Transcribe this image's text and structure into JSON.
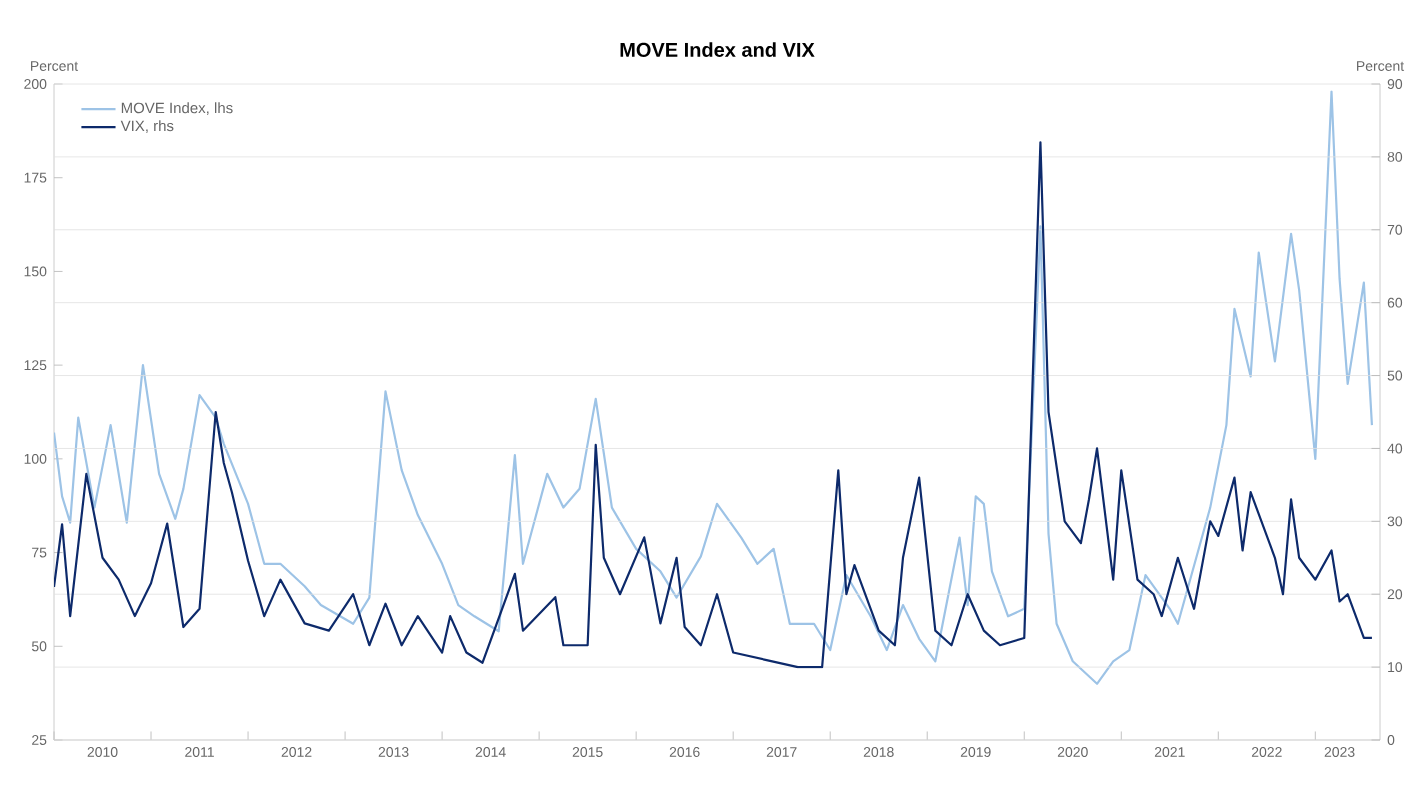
{
  "chart_data": {
    "type": "line",
    "title": "MOVE Index and VIX",
    "ylabel": "Percent",
    "y2label": "Percent",
    "xlim": [
      "2010-01-01",
      "2023-09-01"
    ],
    "ylim": [
      25,
      200
    ],
    "yticks": [
      25,
      50,
      75,
      100,
      125,
      150,
      175,
      200
    ],
    "y2lim": [
      0,
      90
    ],
    "y2ticks": [
      0,
      10,
      20,
      30,
      40,
      50,
      60,
      70,
      80,
      90
    ],
    "xticks": [
      {
        "value": "2010-01-01",
        "label": null
      },
      {
        "value": "2011-01-01",
        "label": null
      },
      {
        "value": "2012-01-01",
        "label": null
      },
      {
        "value": "2013-01-01",
        "label": null
      },
      {
        "value": "2014-01-01",
        "label": null
      },
      {
        "value": "2015-01-01",
        "label": null
      },
      {
        "value": "2016-01-01",
        "label": null
      },
      {
        "value": "2017-01-01",
        "label": null
      },
      {
        "value": "2018-01-01",
        "label": null
      },
      {
        "value": "2019-01-01",
        "label": null
      },
      {
        "value": "2020-01-01",
        "label": null
      },
      {
        "value": "2021-01-01",
        "label": null
      },
      {
        "value": "2022-01-01",
        "label": null
      },
      {
        "value": "2023-01-01",
        "label": null
      },
      {
        "value": "2010-07-01",
        "label": "2010"
      },
      {
        "value": "2011-07-01",
        "label": "2011"
      },
      {
        "value": "2012-07-01",
        "label": "2012"
      },
      {
        "value": "2013-07-01",
        "label": "2013"
      },
      {
        "value": "2014-07-01",
        "label": "2014"
      },
      {
        "value": "2015-07-01",
        "label": "2015"
      },
      {
        "value": "2016-07-01",
        "label": "2016"
      },
      {
        "value": "2017-07-01",
        "label": "2017"
      },
      {
        "value": "2018-07-01",
        "label": "2018"
      },
      {
        "value": "2019-07-01",
        "label": "2019"
      },
      {
        "value": "2020-07-01",
        "label": "2020"
      },
      {
        "value": "2021-07-01",
        "label": "2021"
      },
      {
        "value": "2022-07-01",
        "label": "2022"
      },
      {
        "value": "2023-04-01",
        "label": "2023"
      }
    ],
    "grid": "y2",
    "legend": "top left",
    "marker": "none",
    "line_style": "solid",
    "series": [
      {
        "name": "MOVE Index, lhs",
        "color": "#9dc3e6",
        "axis": "y",
        "x": [
          "2010-01",
          "2010-02",
          "2010-03",
          "2010-04",
          "2010-06",
          "2010-08",
          "2010-10",
          "2010-12",
          "2011-02",
          "2011-04",
          "2011-05",
          "2011-07",
          "2011-09",
          "2011-10",
          "2012-01",
          "2012-03",
          "2012-05",
          "2012-08",
          "2012-10",
          "2013-02",
          "2013-04",
          "2013-06",
          "2013-08",
          "2013-10",
          "2014-01",
          "2014-03",
          "2014-05",
          "2014-08",
          "2014-10",
          "2014-11",
          "2015-02",
          "2015-04",
          "2015-06",
          "2015-08",
          "2015-10",
          "2016-01",
          "2016-04",
          "2016-06",
          "2016-09",
          "2016-11",
          "2017-02",
          "2017-04",
          "2017-06",
          "2017-08",
          "2017-11",
          "2018-01",
          "2018-03",
          "2018-06",
          "2018-08",
          "2018-10",
          "2018-12",
          "2019-02",
          "2019-05",
          "2019-06",
          "2019-07",
          "2019-08",
          "2019-09",
          "2019-11",
          "2020-01",
          "2020-03",
          "2020-04",
          "2020-05",
          "2020-07",
          "2020-10",
          "2020-12",
          "2021-02",
          "2021-04",
          "2021-07",
          "2021-08",
          "2021-12",
          "2022-02",
          "2022-03",
          "2022-05",
          "2022-06",
          "2022-08",
          "2022-10",
          "2022-11",
          "2023-01",
          "2023-03",
          "2023-04",
          "2023-05",
          "2023-07",
          "2023-08"
        ],
        "values": [
          107,
          90,
          83,
          111,
          87,
          109,
          83,
          125,
          96,
          84,
          92,
          117,
          111,
          104,
          88,
          72,
          72,
          66,
          61,
          56,
          63,
          118,
          97,
          85,
          72,
          61,
          58,
          54,
          101,
          72,
          96,
          87,
          92,
          116,
          87,
          76,
          70,
          63,
          74,
          88,
          79,
          72,
          76,
          56,
          56,
          49,
          69,
          58,
          49,
          61,
          52,
          46,
          79,
          61,
          90,
          88,
          70,
          58,
          60,
          162,
          80,
          56,
          46,
          40,
          46,
          49,
          69,
          60,
          56,
          87,
          109,
          140,
          122,
          155,
          126,
          160,
          145,
          100,
          198,
          148,
          120,
          147,
          109
        ]
      },
      {
        "name": "VIX, rhs",
        "color": "#0d2a6b",
        "axis": "y2",
        "x": [
          "2010-01",
          "2010-02",
          "2010-03",
          "2010-05",
          "2010-07",
          "2010-09",
          "2010-11",
          "2011-01",
          "2011-03",
          "2011-05",
          "2011-07",
          "2011-09",
          "2011-10",
          "2011-11",
          "2012-01",
          "2012-03",
          "2012-05",
          "2012-08",
          "2012-11",
          "2013-02",
          "2013-04",
          "2013-06",
          "2013-08",
          "2013-10",
          "2014-01",
          "2014-02",
          "2014-04",
          "2014-06",
          "2014-10",
          "2014-11",
          "2015-03",
          "2015-04",
          "2015-07",
          "2015-08",
          "2015-09",
          "2015-11",
          "2016-02",
          "2016-04",
          "2016-06",
          "2016-07",
          "2016-09",
          "2016-11",
          "2017-01",
          "2017-05",
          "2017-09",
          "2017-12",
          "2018-02",
          "2018-03",
          "2018-04",
          "2018-07",
          "2018-09",
          "2018-10",
          "2018-12",
          "2019-02",
          "2019-04",
          "2019-06",
          "2019-08",
          "2019-10",
          "2020-01",
          "2020-03",
          "2020-04",
          "2020-06",
          "2020-08",
          "2020-09",
          "2020-10",
          "2020-12",
          "2021-01",
          "2021-03",
          "2021-05",
          "2021-06",
          "2021-08",
          "2021-10",
          "2021-12",
          "2022-01",
          "2022-03",
          "2022-04",
          "2022-05",
          "2022-08",
          "2022-09",
          "2022-10",
          "2022-11",
          "2023-01",
          "2023-03",
          "2023-04",
          "2023-05",
          "2023-07",
          "2023-08"
        ],
        "values": [
          21,
          29.6,
          17,
          36.5,
          25,
          22,
          17,
          21.5,
          29.7,
          15.5,
          18,
          45,
          38,
          34,
          24.6,
          17,
          22,
          16,
          15,
          20,
          13,
          18.7,
          13,
          17,
          12,
          17,
          12,
          10.6,
          22.8,
          15,
          19.6,
          13,
          13,
          40.5,
          25,
          20,
          27.8,
          16,
          25,
          15.5,
          13,
          20,
          12,
          11,
          10,
          10,
          37,
          20,
          24,
          15,
          13,
          25,
          36,
          15,
          13,
          20,
          15,
          13,
          14,
          82,
          45,
          30,
          27,
          33,
          40,
          22,
          37,
          22,
          20,
          17,
          25,
          18,
          30,
          28,
          36,
          26,
          34,
          25,
          20,
          33,
          25,
          22,
          26,
          19,
          20,
          14,
          14
        ]
      }
    ]
  }
}
